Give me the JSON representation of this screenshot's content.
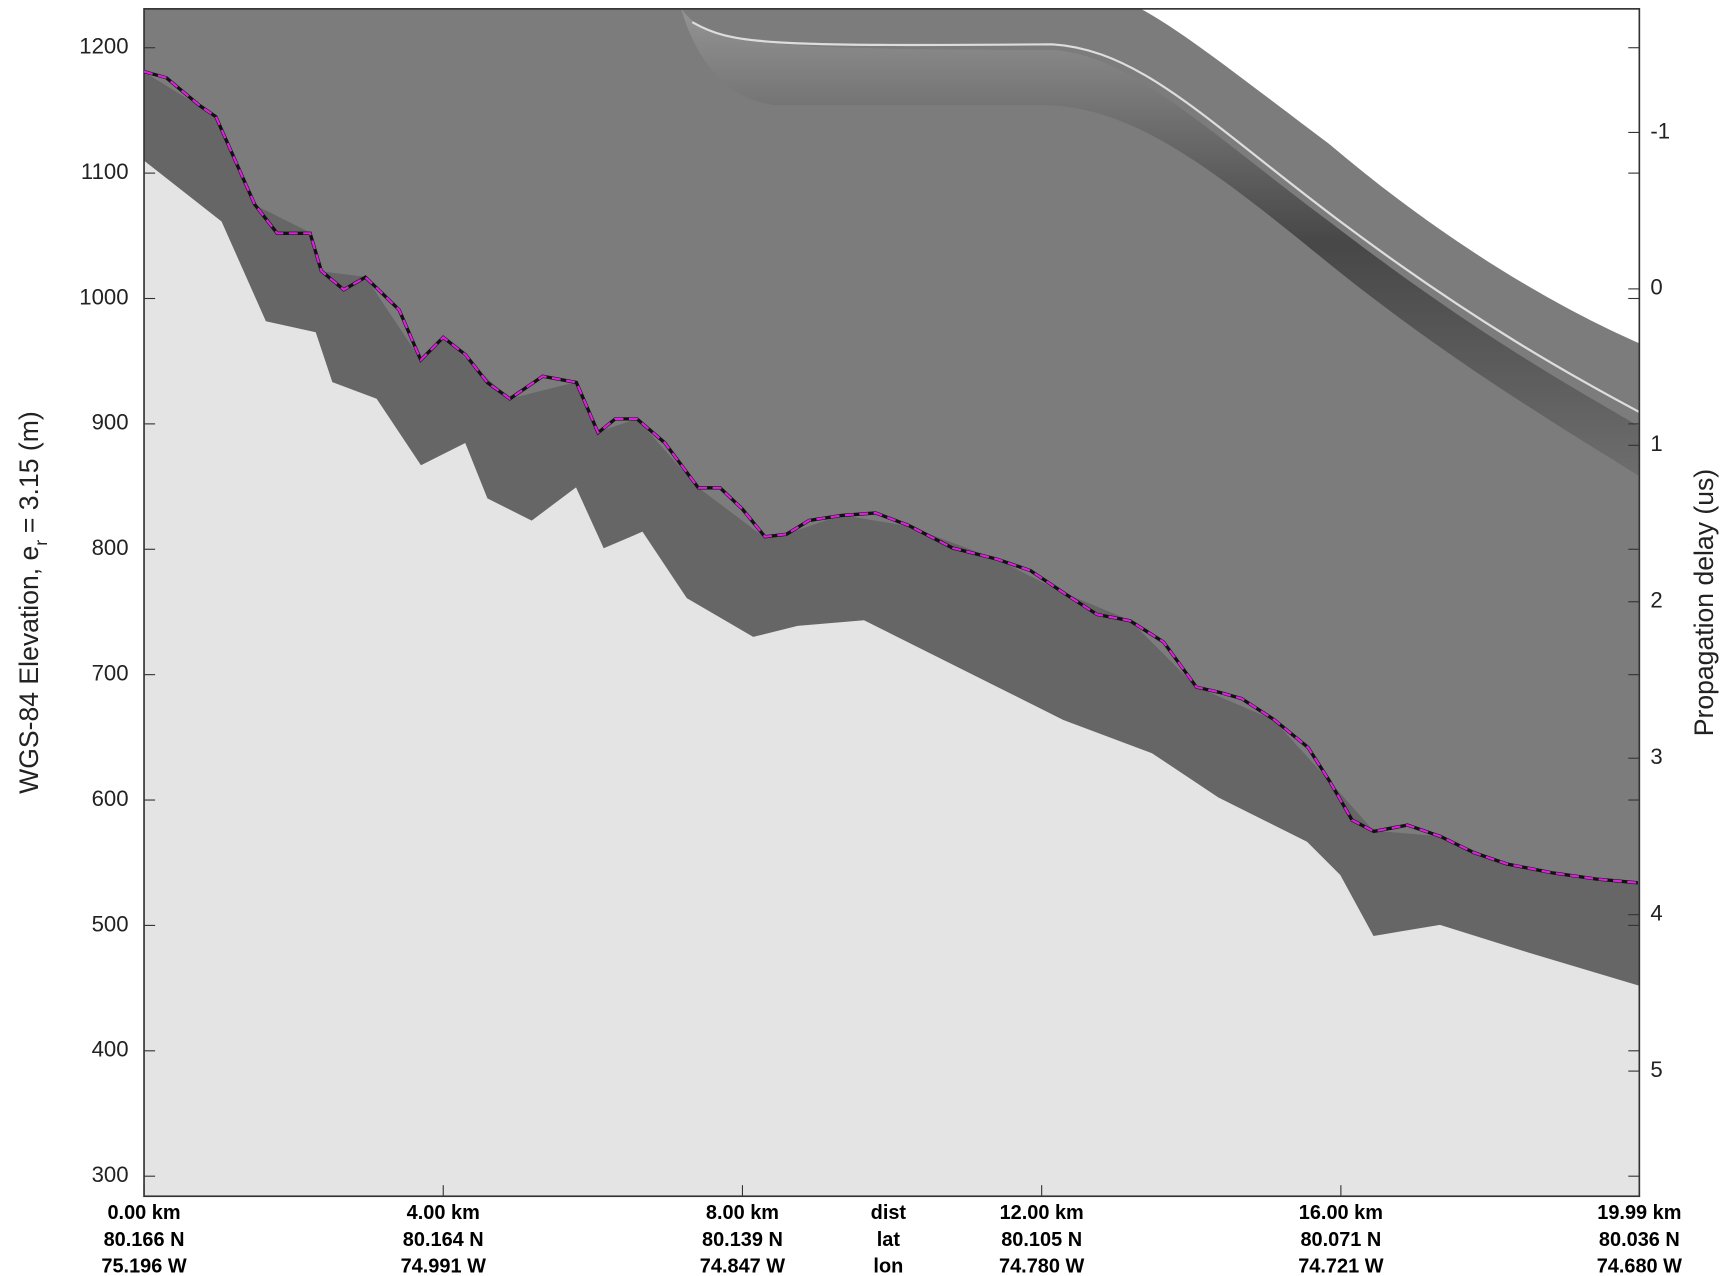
{
  "chart_data": {
    "type": "line",
    "ylabel": [
      "WGS-84 Elevation, e",
      "r",
      "= 3.15 (m)"
    ],
    "y2label": "Propagation delay (us)",
    "xlim": [
      0,
      19.99
    ],
    "ylim": [
      284,
      1231
    ],
    "y2lim": [
      5.8,
      -1.79
    ],
    "yticks": [
      300,
      400,
      500,
      600,
      700,
      800,
      900,
      1000,
      1100,
      1200
    ],
    "y2ticks": [
      -1,
      0,
      1,
      2,
      3,
      4,
      5
    ],
    "xticks": [
      {
        "value": 0,
        "label": "0.00 km"
      },
      {
        "value": 4,
        "label": "4.00 km"
      },
      {
        "value": 8,
        "label": "8.00 km"
      },
      {
        "value": 12,
        "label": "12.00 km"
      },
      {
        "value": 16,
        "label": "16.00 km"
      },
      {
        "value": 19.99,
        "label": "19.99 km"
      }
    ],
    "lat_labels": [
      "80.166 N",
      "80.164 N",
      "80.139 N",
      "80.105 N",
      "80.071 N",
      "80.036 N"
    ],
    "lon_labels": [
      "75.196 W",
      "74.991 W",
      "74.847 W",
      "74.780 W",
      "74.721 W",
      "74.680 W"
    ],
    "row_labels": [
      "dist",
      "lat",
      "lon"
    ],
    "color": "#e020e0",
    "x": [
      0,
      0.3,
      0.74,
      0.96,
      1.19,
      1.48,
      1.78,
      2.22,
      2.37,
      2.67,
      2.96,
      3.41,
      3.7,
      4.0,
      4.3,
      4.59,
      4.89,
      5.33,
      5.78,
      6.07,
      6.3,
      6.59,
      6.96,
      7.41,
      7.7,
      8.0,
      8.3,
      8.59,
      8.89,
      9.33,
      9.78,
      10.22,
      10.81,
      11.41,
      11.85,
      12.3,
      12.74,
      13.18,
      13.63,
      14.07,
      14.37,
      14.67,
      15.11,
      15.56,
      15.85,
      16.15,
      16.44,
      16.89,
      17.33,
      17.78,
      18.22,
      18.82,
      19.41,
      19.97
    ],
    "values": [
      1181,
      1176,
      1154,
      1145,
      1114,
      1075,
      1052,
      1052,
      1022,
      1007,
      1017,
      991,
      951,
      969,
      955,
      933,
      920,
      938,
      933,
      893,
      904,
      904,
      885,
      849,
      849,
      832,
      810,
      812,
      823,
      827,
      829,
      819,
      801,
      792,
      783,
      765,
      748,
      743,
      726,
      690,
      686,
      681,
      664,
      642,
      615,
      584,
      575,
      580,
      571,
      558,
      549,
      542,
      537,
      534
    ]
  }
}
